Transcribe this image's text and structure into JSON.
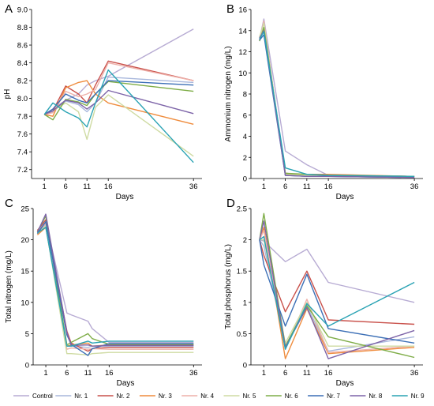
{
  "series_meta": [
    {
      "name": "Control",
      "color": "#b7abd3"
    },
    {
      "name": "Nr. 1",
      "color": "#a8b7dc"
    },
    {
      "name": "Nr. 2",
      "color": "#c9514b"
    },
    {
      "name": "Nr. 3",
      "color": "#ef8c3d"
    },
    {
      "name": "Nr. 4",
      "color": "#eeb1aa"
    },
    {
      "name": "Nr. 5",
      "color": "#cfdba3"
    },
    {
      "name": "Nr. 6",
      "color": "#7fad48"
    },
    {
      "name": "Nr. 7",
      "color": "#3c6fb6"
    },
    {
      "name": "Nr. 8",
      "color": "#7d64a8"
    },
    {
      "name": "Nr. 9",
      "color": "#2aa3b4"
    }
  ],
  "chart_data": [
    {
      "panel": "A",
      "type": "line",
      "xlabel": "Days",
      "ylabel": "pH",
      "x": [
        1,
        3,
        6,
        9,
        11,
        13,
        16,
        36
      ],
      "xticks": [
        1,
        6,
        11,
        16,
        36
      ],
      "yticks": [
        7.2,
        7.4,
        7.6,
        7.8,
        8.0,
        8.2,
        8.4,
        8.6,
        8.8,
        9.0
      ],
      "ytick_labels": [
        "7.2",
        "7.4",
        "7.6",
        "7.8",
        "8.0",
        "8.2",
        "8.4",
        "8.6",
        "8.8",
        "9.0"
      ],
      "ylim": [
        7.1,
        9.0
      ],
      "series": [
        {
          "name": "Control",
          "values": [
            7.82,
            7.88,
            7.98,
            8.05,
            8.15,
            8.2,
            8.25,
            8.78
          ]
        },
        {
          "name": "Nr. 1",
          "values": [
            7.82,
            7.85,
            7.97,
            7.93,
            7.85,
            7.95,
            8.24,
            8.18
          ]
        },
        {
          "name": "Nr. 2",
          "values": [
            7.82,
            7.86,
            8.14,
            8.05,
            7.95,
            8.15,
            8.42,
            8.2
          ]
        },
        {
          "name": "Nr. 3",
          "values": [
            7.82,
            7.8,
            8.12,
            8.18,
            8.2,
            8.05,
            7.95,
            7.71
          ]
        },
        {
          "name": "Nr. 4",
          "values": [
            7.82,
            7.84,
            8.08,
            8.02,
            8.05,
            8.1,
            8.4,
            8.2
          ]
        },
        {
          "name": "Nr. 5",
          "values": [
            7.82,
            7.86,
            7.95,
            7.85,
            7.54,
            7.9,
            8.04,
            7.35
          ]
        },
        {
          "name": "Nr. 6",
          "values": [
            7.82,
            7.76,
            7.99,
            7.96,
            7.92,
            8.05,
            8.19,
            8.08
          ]
        },
        {
          "name": "Nr. 7",
          "values": [
            7.82,
            7.88,
            8.05,
            7.98,
            7.95,
            8.05,
            8.2,
            8.15
          ]
        },
        {
          "name": "Nr. 8",
          "values": [
            7.82,
            7.86,
            7.98,
            7.95,
            7.88,
            7.95,
            8.09,
            7.83
          ]
        },
        {
          "name": "Nr. 9",
          "values": [
            7.82,
            7.95,
            7.85,
            7.78,
            7.68,
            7.95,
            8.32,
            7.28
          ]
        }
      ]
    },
    {
      "panel": "B",
      "type": "line",
      "xlabel": "Days",
      "ylabel": "Ammonium nitrogen (mg/L)",
      "x": [
        0,
        1,
        6,
        11,
        16,
        36
      ],
      "xticks": [
        1,
        6,
        11,
        16,
        36
      ],
      "yticks": [
        0,
        2,
        4,
        6,
        8,
        10,
        12,
        14,
        16
      ],
      "ytick_labels": [
        "0",
        "2",
        "4",
        "6",
        "8",
        "10",
        "12",
        "14",
        "16"
      ],
      "ylim": [
        0,
        16
      ],
      "series": [
        {
          "name": "Control",
          "values": [
            13.2,
            15.1,
            2.6,
            1.3,
            0.3,
            0.2
          ]
        },
        {
          "name": "Nr. 1",
          "values": [
            13.0,
            14.8,
            0.4,
            0.3,
            0.2,
            0.1
          ]
        },
        {
          "name": "Nr. 2",
          "values": [
            13.1,
            14.2,
            0.5,
            0.3,
            0.3,
            0.2
          ]
        },
        {
          "name": "Nr. 3",
          "values": [
            13.3,
            14.0,
            0.4,
            0.4,
            0.4,
            0.2
          ]
        },
        {
          "name": "Nr. 4",
          "values": [
            13.2,
            14.9,
            0.3,
            0.3,
            0.3,
            0.2
          ]
        },
        {
          "name": "Nr. 5",
          "values": [
            13.4,
            14.7,
            0.4,
            0.3,
            0.3,
            0.2
          ]
        },
        {
          "name": "Nr. 6",
          "values": [
            13.0,
            14.3,
            0.5,
            0.4,
            0.3,
            0.2
          ]
        },
        {
          "name": "Nr. 7",
          "values": [
            13.1,
            13.6,
            0.3,
            0.2,
            0.2,
            0.1
          ]
        },
        {
          "name": "Nr. 8",
          "values": [
            13.3,
            14.0,
            0.3,
            0.2,
            0.2,
            0.1
          ]
        },
        {
          "name": "Nr. 9",
          "values": [
            13.2,
            13.9,
            1.0,
            0.4,
            0.3,
            0.2
          ]
        }
      ]
    },
    {
      "panel": "C",
      "type": "line",
      "xlabel": "Days",
      "ylabel": "Total nitrogen (mg/L)",
      "x": [
        -1,
        1,
        6,
        7,
        11,
        12,
        16,
        36
      ],
      "xticks": [
        1,
        6,
        11,
        16,
        36
      ],
      "yticks": [
        0,
        5,
        10,
        15,
        20,
        25
      ],
      "ytick_labels": [
        "0",
        "5",
        "10",
        "15",
        "20",
        "25"
      ],
      "ylim": [
        0,
        25
      ],
      "series": [
        {
          "name": "Control",
          "values": [
            21.5,
            22.8,
            8.3,
            8.0,
            7.0,
            5.8,
            3.6,
            3.6
          ]
        },
        {
          "name": "Nr. 1",
          "values": [
            21.0,
            22.5,
            3.0,
            3.0,
            2.8,
            3.0,
            3.0,
            3.0
          ]
        },
        {
          "name": "Nr. 2",
          "values": [
            21.5,
            23.2,
            5.4,
            3.5,
            2.2,
            2.6,
            2.8,
            2.8
          ]
        },
        {
          "name": "Nr. 3",
          "values": [
            20.8,
            22.0,
            3.0,
            3.2,
            3.5,
            3.0,
            3.2,
            3.2
          ]
        },
        {
          "name": "Nr. 4",
          "values": [
            21.2,
            22.6,
            2.5,
            2.7,
            2.5,
            2.6,
            2.5,
            2.5
          ]
        },
        {
          "name": "Nr. 5",
          "values": [
            21.0,
            22.2,
            1.8,
            1.8,
            1.6,
            1.8,
            2.0,
            2.0
          ]
        },
        {
          "name": "Nr. 6",
          "values": [
            21.3,
            23.8,
            3.2,
            3.6,
            5.0,
            4.2,
            3.3,
            3.3
          ]
        },
        {
          "name": "Nr. 7",
          "values": [
            21.0,
            22.9,
            4.8,
            3.3,
            1.5,
            2.6,
            3.4,
            3.4
          ]
        },
        {
          "name": "Nr. 8",
          "values": [
            21.2,
            24.1,
            5.2,
            3.1,
            3.2,
            3.0,
            3.1,
            3.1
          ]
        },
        {
          "name": "Nr. 9",
          "values": [
            21.1,
            22.0,
            3.0,
            3.0,
            3.8,
            3.5,
            3.8,
            3.8
          ]
        }
      ]
    },
    {
      "panel": "D",
      "type": "line",
      "xlabel": "Days",
      "ylabel": "Total phosphorus (mg/L)",
      "x": [
        0,
        1,
        6,
        11,
        16,
        36
      ],
      "xticks": [
        1,
        6,
        11,
        16,
        36
      ],
      "yticks": [
        0,
        0.5,
        1,
        1.5,
        2,
        2.5
      ],
      "ytick_labels": [
        "0",
        "0.5",
        "1",
        "1.5",
        "2",
        "2.5"
      ],
      "ylim": [
        0,
        2.5
      ],
      "series": [
        {
          "name": "Control",
          "values": [
            2.0,
            1.98,
            1.65,
            1.85,
            1.32,
            1.0
          ]
        },
        {
          "name": "Nr. 1",
          "values": [
            2.0,
            1.9,
            0.3,
            0.95,
            0.22,
            0.45
          ]
        },
        {
          "name": "Nr. 2",
          "values": [
            2.0,
            1.75,
            0.85,
            1.5,
            0.72,
            0.65
          ]
        },
        {
          "name": "Nr. 3",
          "values": [
            2.0,
            2.2,
            0.1,
            0.9,
            0.18,
            0.28
          ]
        },
        {
          "name": "Nr. 4",
          "values": [
            2.0,
            2.15,
            0.25,
            1.05,
            0.2,
            0.3
          ]
        },
        {
          "name": "Nr. 5",
          "values": [
            2.0,
            2.0,
            0.35,
            1.0,
            0.3,
            0.3
          ]
        },
        {
          "name": "Nr. 6",
          "values": [
            2.0,
            2.42,
            0.3,
            0.95,
            0.45,
            0.12
          ]
        },
        {
          "name": "Nr. 7",
          "values": [
            2.0,
            1.6,
            0.62,
            1.45,
            0.58,
            0.35
          ]
        },
        {
          "name": "Nr. 8",
          "values": [
            2.0,
            2.3,
            0.28,
            0.92,
            0.1,
            0.55
          ]
        },
        {
          "name": "Nr. 9",
          "values": [
            2.0,
            2.05,
            0.25,
            0.98,
            0.62,
            1.32
          ]
        }
      ]
    }
  ]
}
